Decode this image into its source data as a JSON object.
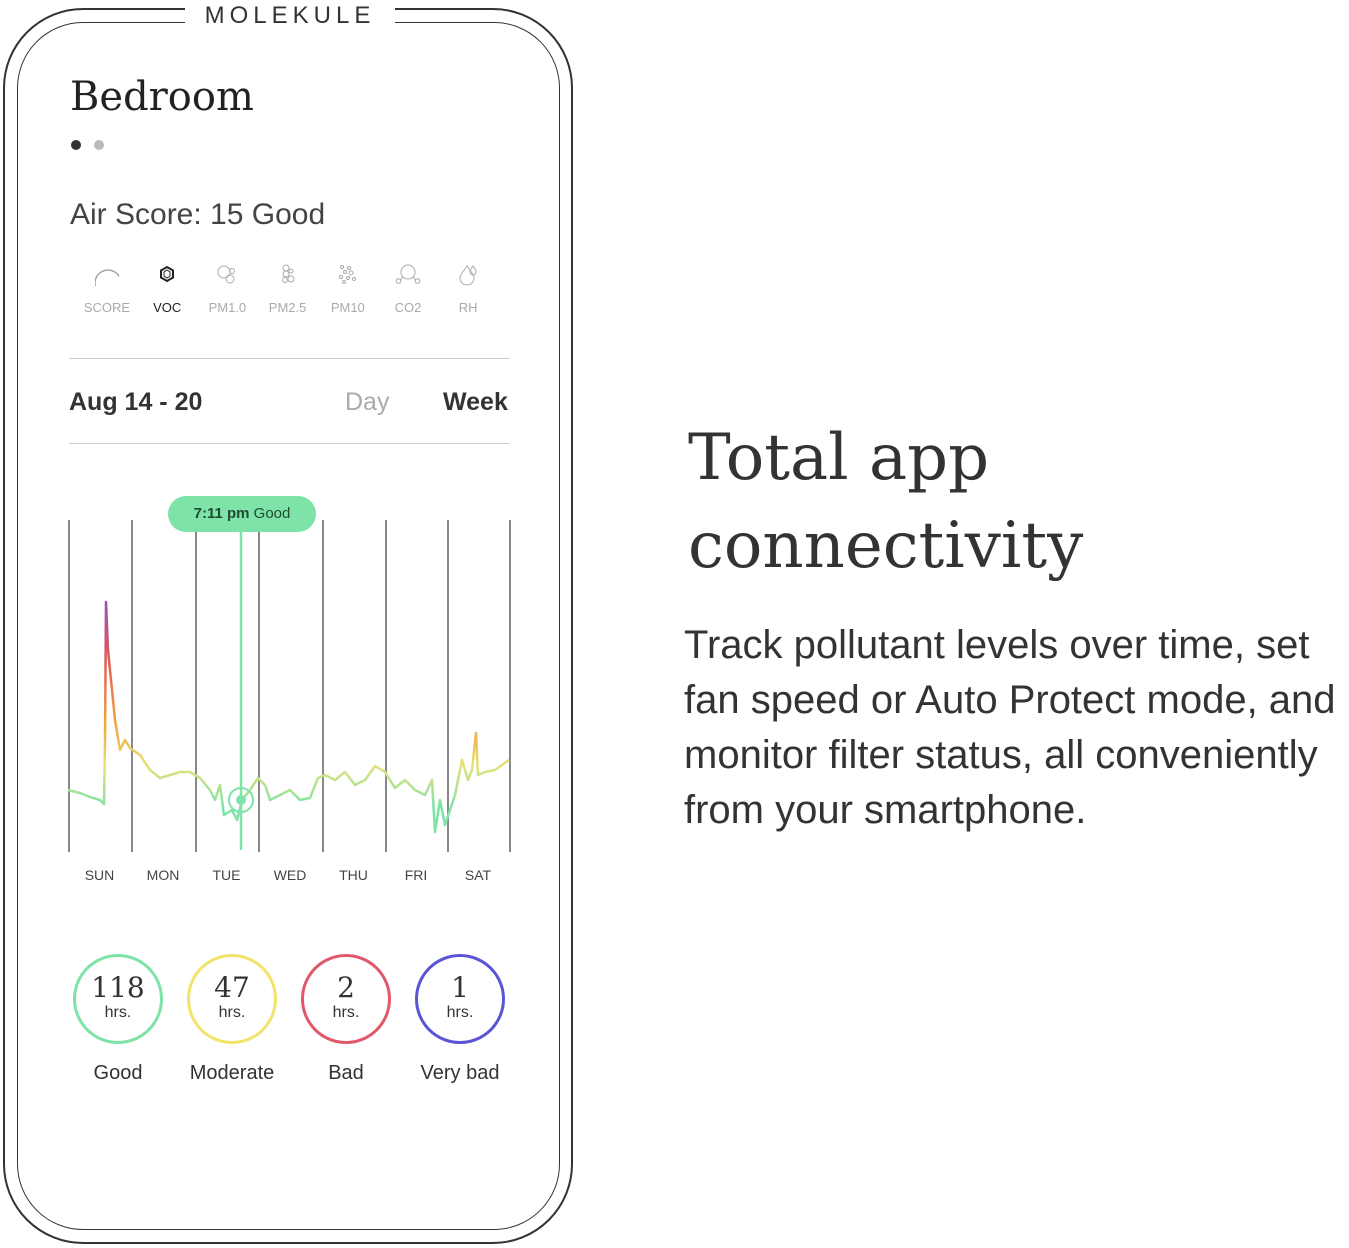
{
  "brand": "MOLEKULE",
  "app": {
    "room_title": "Bedroom",
    "air_score": "Air Score: 15 Good",
    "metrics": [
      {
        "label": "SCORE",
        "icon": "score-arc-icon"
      },
      {
        "label": "VOC",
        "icon": "voc-molecule-icon",
        "active": true
      },
      {
        "label": "PM1.0",
        "icon": "pm1-particles-icon"
      },
      {
        "label": "PM2.5",
        "icon": "pm25-particles-icon"
      },
      {
        "label": "PM10",
        "icon": "pm10-particles-icon"
      },
      {
        "label": "CO2",
        "icon": "co2-molecule-icon"
      },
      {
        "label": "RH",
        "icon": "humidity-drop-icon"
      }
    ],
    "date_range": "Aug 14 - 20",
    "day_tab": "Day",
    "week_tab": "Week",
    "tooltip": {
      "time": "7:11 pm",
      "status": "Good"
    },
    "days": [
      "SUN",
      "MON",
      "TUE",
      "WED",
      "THU",
      "FRI",
      "SAT"
    ],
    "summary": [
      {
        "value": "118",
        "unit": "hrs.",
        "label": "Good",
        "color": "#7de3a6"
      },
      {
        "value": "47",
        "unit": "hrs.",
        "label": "Moderate",
        "color": "#f2e46a"
      },
      {
        "value": "2",
        "unit": "hrs.",
        "label": "Bad",
        "color": "#e0586a"
      },
      {
        "value": "1",
        "unit": "hrs.",
        "label": "Very bad",
        "color": "#5b55d6"
      }
    ]
  },
  "headline": "Total app connectivity",
  "description": "Track pollutant levels over time, set fan speed or Auto Protect mode, and monitor filter status, all conveniently from your smartphone."
}
